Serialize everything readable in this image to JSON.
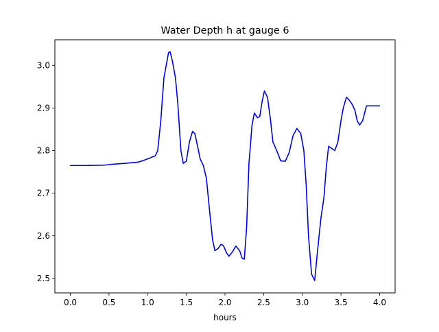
{
  "chart_data": {
    "type": "line",
    "title": "Water Depth h at gauge 6",
    "xlabel": "hours",
    "ylabel": "",
    "xlim": [
      -0.2,
      4.2
    ],
    "ylim": [
      2.466,
      3.06
    ],
    "xticks": [
      0.0,
      0.5,
      1.0,
      1.5,
      2.0,
      2.5,
      3.0,
      3.5,
      4.0
    ],
    "xtick_labels": [
      "0.0",
      "0.5",
      "1.0",
      "1.5",
      "2.0",
      "2.5",
      "3.0",
      "3.5",
      "4.0"
    ],
    "yticks": [
      2.5,
      2.6,
      2.7,
      2.8,
      2.9,
      3.0
    ],
    "ytick_labels": [
      "2.5",
      "2.6",
      "2.7",
      "2.8",
      "2.9",
      "3.0"
    ],
    "grid": false,
    "series": [
      {
        "color": "#0000cc",
        "x": [
          0.0,
          0.2,
          0.45,
          0.55,
          0.7,
          0.88,
          0.95,
          1.02,
          1.1,
          1.13,
          1.17,
          1.21,
          1.25,
          1.27,
          1.29,
          1.32,
          1.36,
          1.39,
          1.43,
          1.46,
          1.5,
          1.54,
          1.58,
          1.61,
          1.64,
          1.68,
          1.72,
          1.76,
          1.8,
          1.84,
          1.87,
          1.91,
          1.95,
          1.98,
          2.02,
          2.05,
          2.1,
          2.14,
          2.19,
          2.22,
          2.25,
          2.28,
          2.31,
          2.35,
          2.38,
          2.42,
          2.45,
          2.48,
          2.51,
          2.55,
          2.59,
          2.62,
          2.65,
          2.68,
          2.72,
          2.78,
          2.83,
          2.88,
          2.93,
          2.98,
          3.02,
          3.05,
          3.08,
          3.12,
          3.16,
          3.2,
          3.24,
          3.28,
          3.31,
          3.34,
          3.38,
          3.42,
          3.46,
          3.5,
          3.53,
          3.57,
          3.6,
          3.64,
          3.68,
          3.71,
          3.74,
          3.78,
          3.83,
          3.87,
          3.91,
          3.94,
          4.0
        ],
        "values": [
          2.765,
          2.765,
          2.766,
          2.768,
          2.77,
          2.773,
          2.777,
          2.782,
          2.788,
          2.8,
          2.87,
          2.97,
          3.01,
          3.03,
          3.032,
          3.01,
          2.97,
          2.91,
          2.8,
          2.77,
          2.775,
          2.82,
          2.845,
          2.84,
          2.815,
          2.78,
          2.765,
          2.735,
          2.66,
          2.59,
          2.565,
          2.57,
          2.58,
          2.577,
          2.56,
          2.552,
          2.563,
          2.576,
          2.565,
          2.548,
          2.545,
          2.62,
          2.77,
          2.86,
          2.888,
          2.877,
          2.88,
          2.915,
          2.94,
          2.925,
          2.87,
          2.82,
          2.808,
          2.795,
          2.776,
          2.775,
          2.795,
          2.835,
          2.852,
          2.84,
          2.8,
          2.72,
          2.6,
          2.51,
          2.495,
          2.57,
          2.64,
          2.69,
          2.76,
          2.81,
          2.805,
          2.8,
          2.82,
          2.87,
          2.9,
          2.925,
          2.92,
          2.91,
          2.895,
          2.87,
          2.86,
          2.87,
          2.905,
          2.905,
          2.905,
          2.905,
          2.905
        ]
      }
    ]
  }
}
